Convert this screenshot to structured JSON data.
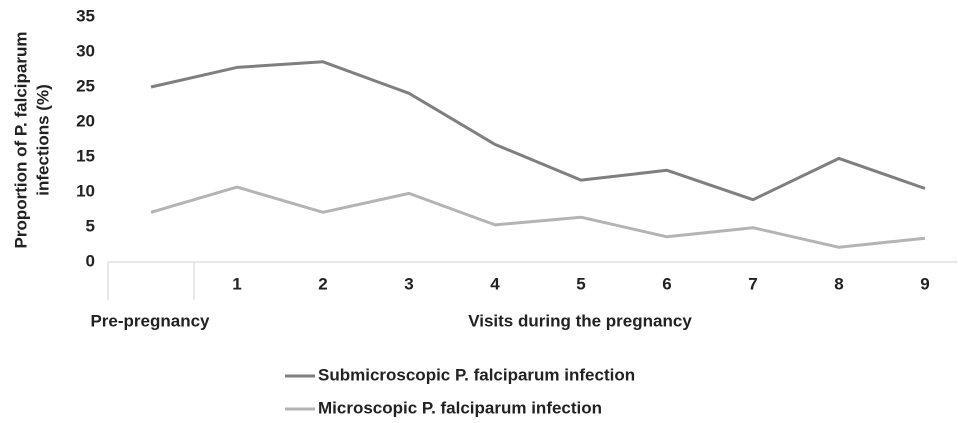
{
  "chart_data": {
    "type": "line",
    "ylabel": [
      "Proportion of P. falciparum",
      "infections (%)"
    ],
    "categories": [
      null,
      "1",
      "2",
      "3",
      "4",
      "5",
      "6",
      "7",
      "8",
      "9"
    ],
    "x_group_labels": [
      "Pre-pregnancy",
      "Visits during the pregnancy"
    ],
    "series": [
      {
        "name": "Submicroscopic P. falciparum infection",
        "color": "#7f7f7f",
        "values": [
          25,
          27.8,
          28.6,
          24.1,
          16.8,
          11.7,
          13.1,
          8.9,
          14.8,
          10.5
        ]
      },
      {
        "name": "Microscopic P. falciparum infection",
        "color": "#b4b4b4",
        "values": [
          7.1,
          10.7,
          7.1,
          9.8,
          5.3,
          6.4,
          3.6,
          4.9,
          2.1,
          3.4
        ]
      }
    ],
    "ylim": [
      0,
      35
    ],
    "yticks": [
      0,
      5,
      10,
      15,
      20,
      25,
      30,
      35
    ],
    "grid": false,
    "legend": "bottom"
  }
}
